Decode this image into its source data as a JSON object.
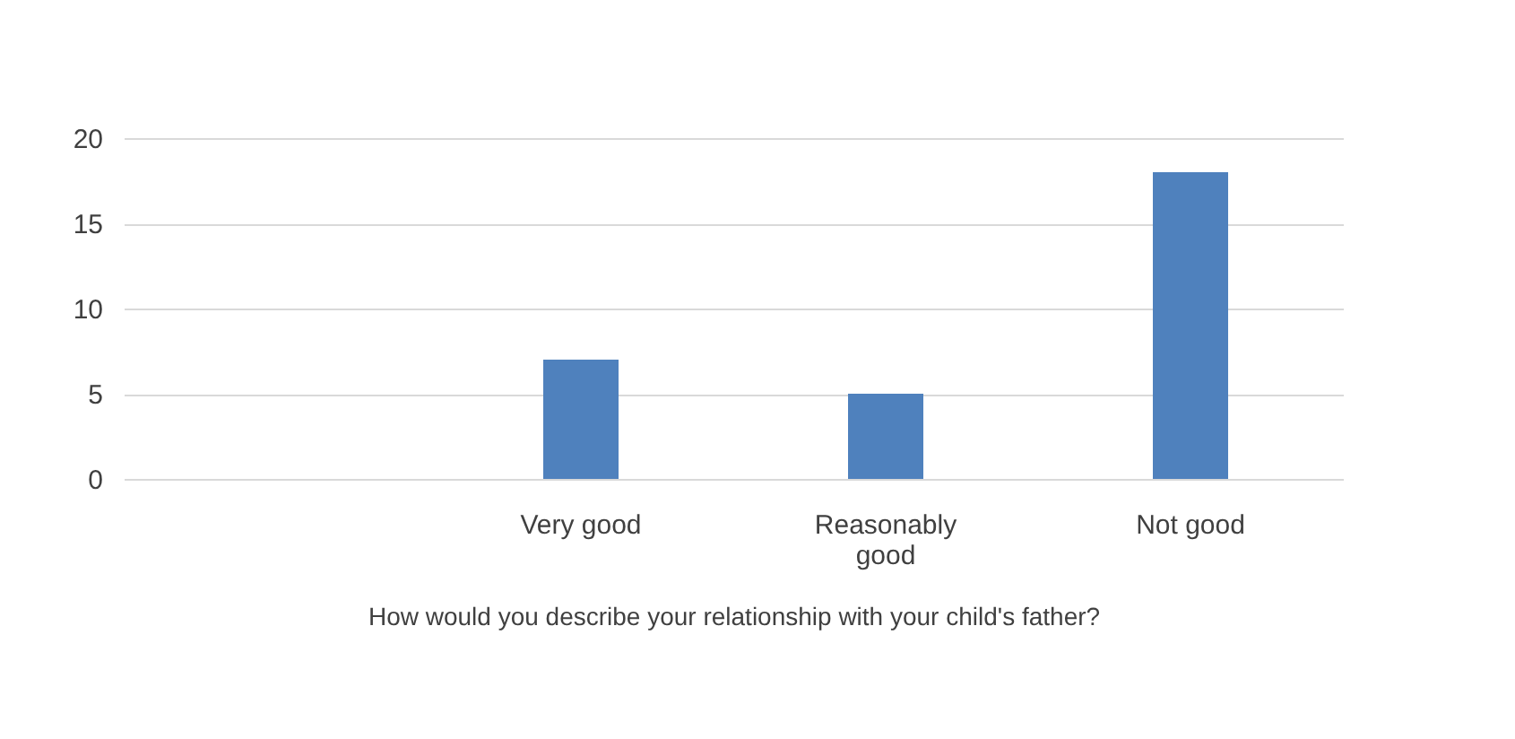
{
  "chart_data": {
    "type": "bar",
    "xlabel": "How would you describe your relationship with your child's father?",
    "categories": [
      null,
      "Very good",
      "Reasonably good",
      "Not good"
    ],
    "values": [
      null,
      7,
      5,
      18
    ],
    "color": "#4f81bd",
    "ylim": [
      0,
      20
    ],
    "yticks": [
      0,
      5,
      10,
      15,
      20
    ],
    "grid": "y"
  }
}
